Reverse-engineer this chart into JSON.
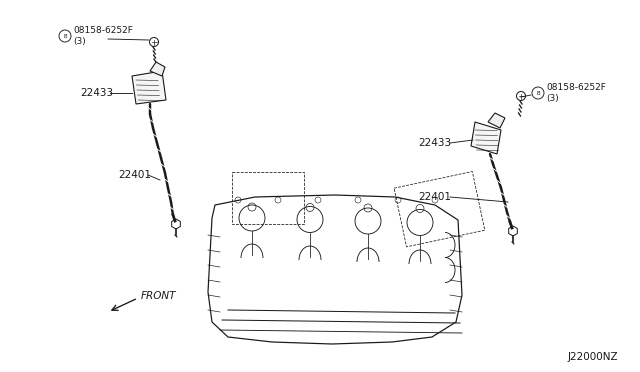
{
  "bg_color": "#ffffff",
  "line_color": "#1a1a1a",
  "text_color": "#1a1a1a",
  "part_numbers": {
    "bolt_left": "08158-6252F\n(3)",
    "bolt_right": "08158-6252F\n(3)",
    "coil_left": "22433",
    "coil_right": "22433",
    "plug_left": "22401",
    "plug_right": "22401"
  },
  "front_label": "FRONT",
  "diagram_code": "J22000NZ",
  "figsize": [
    6.4,
    3.72
  ],
  "dpi": 100
}
